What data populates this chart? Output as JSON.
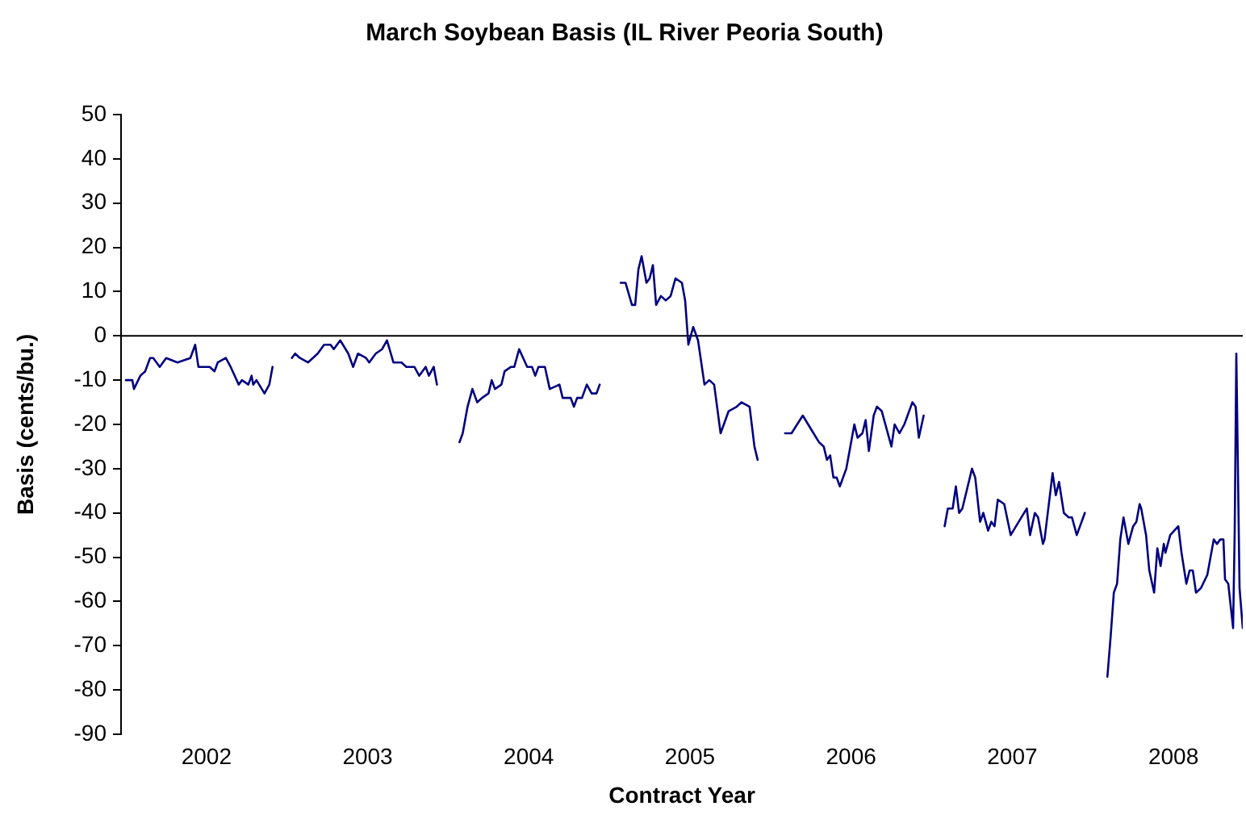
{
  "chart_data": {
    "type": "line",
    "title": "March Soybean Basis (IL River Peoria South)",
    "xlabel": "Contract Year",
    "ylabel": "Basis (cents/bu.)",
    "xlim": [
      2001.47,
      2008.43
    ],
    "xticks": [
      2002,
      2003,
      2004,
      2005,
      2006,
      2007,
      2008
    ],
    "ylim": [
      -90,
      50
    ],
    "yticks": [
      -90,
      -80,
      -70,
      -60,
      -50,
      -40,
      -30,
      -20,
      -10,
      0,
      10,
      20,
      30,
      40,
      50
    ],
    "grid": false,
    "legend": false,
    "marker": "none",
    "line_style": "solid",
    "ref_lines": [
      {
        "axis": "y",
        "value": 0,
        "color": "#000000"
      }
    ],
    "series": [
      {
        "color": "#000080",
        "x": [
          2001.5,
          2001.54,
          2001.55,
          2001.59,
          2001.62,
          2001.65,
          2001.67,
          2001.71,
          2001.75,
          2001.82,
          2001.9,
          2001.93,
          2001.95,
          2002.02,
          2002.05,
          2002.07,
          2002.12,
          2002.15,
          2002.2,
          2002.22,
          2002.26,
          2002.28,
          2002.29,
          2002.31,
          2002.36,
          2002.39,
          2002.41,
          2002.47,
          2002.53,
          2002.55,
          2002.58,
          2002.63,
          2002.69,
          2002.73,
          2002.77,
          2002.79,
          2002.83,
          2002.88,
          2002.91,
          2002.94,
          2002.99,
          2003.01,
          2003.05,
          2003.09,
          2003.12,
          2003.16,
          2003.21,
          2003.24,
          2003.29,
          2003.32,
          2003.36,
          2003.38,
          2003.41,
          2003.43,
          2003.5,
          2003.57,
          2003.59,
          2003.62,
          2003.65,
          2003.68,
          2003.71,
          2003.75,
          2003.77,
          2003.79,
          2003.83,
          2003.85,
          2003.89,
          2003.91,
          2003.94,
          2003.99,
          2004.02,
          2004.04,
          2004.06,
          2004.1,
          2004.13,
          2004.19,
          2004.21,
          2004.26,
          2004.28,
          2004.3,
          2004.33,
          2004.36,
          2004.39,
          2004.42,
          2004.44,
          2004.5,
          2004.57,
          2004.6,
          2004.64,
          2004.66,
          2004.68,
          2004.7,
          2004.73,
          2004.75,
          2004.77,
          2004.79,
          2004.82,
          2004.85,
          2004.88,
          2004.91,
          2004.95,
          2004.97,
          2004.99,
          2005.02,
          2005.05,
          2005.09,
          2005.12,
          2005.15,
          2005.19,
          2005.24,
          2005.29,
          2005.32,
          2005.37,
          2005.4,
          2005.42,
          2005.5,
          2005.59,
          2005.63,
          2005.7,
          2005.75,
          2005.8,
          2005.83,
          2005.85,
          2005.87,
          2005.89,
          2005.91,
          2005.93,
          2005.97,
          2005.99,
          2006.02,
          2006.04,
          2006.07,
          2006.09,
          2006.11,
          2006.14,
          2006.16,
          2006.19,
          2006.25,
          2006.27,
          2006.3,
          2006.33,
          2006.38,
          2006.4,
          2006.42,
          2006.45,
          2006.52,
          2006.58,
          2006.6,
          2006.63,
          2006.65,
          2006.67,
          2006.69,
          2006.75,
          2006.77,
          2006.8,
          2006.82,
          2006.85,
          2006.87,
          2006.89,
          2006.91,
          2006.95,
          2006.99,
          2007.04,
          2007.09,
          2007.11,
          2007.14,
          2007.16,
          2007.19,
          2007.2,
          2007.25,
          2007.27,
          2007.29,
          2007.32,
          2007.35,
          2007.37,
          2007.4,
          2007.45,
          2007.52,
          2007.59,
          2007.61,
          2007.63,
          2007.65,
          2007.67,
          2007.69,
          2007.72,
          2007.75,
          2007.77,
          2007.79,
          2007.8,
          2007.83,
          2007.85,
          2007.88,
          2007.9,
          2007.92,
          2007.94,
          2007.95,
          2007.98,
          2008.03,
          2008.05,
          2008.08,
          2008.1,
          2008.12,
          2008.14,
          2008.17,
          2008.21,
          2008.25,
          2008.27,
          2008.29,
          2008.31,
          2008.32,
          2008.34,
          2008.37,
          2008.38,
          2008.39,
          2008.41,
          2008.43
        ],
        "values": [
          -10,
          -10,
          -12,
          -9,
          -8,
          -5,
          -5,
          -7,
          -5,
          -6,
          -5,
          -2,
          -7,
          -7,
          -8,
          -6,
          -5,
          -7,
          -11,
          -10,
          -11,
          -9,
          -11,
          -10,
          -13,
          -11,
          -7,
          null,
          -5,
          -4,
          -5,
          -6,
          -4,
          -2,
          -2,
          -3,
          -1,
          -4,
          -7,
          -4,
          -5,
          -6,
          -4,
          -3,
          -1,
          -6,
          -6,
          -7,
          -7,
          -9,
          -7,
          -9,
          -7,
          -11,
          null,
          -24,
          -22,
          -16,
          -12,
          -15,
          -14,
          -13,
          -10,
          -12,
          -11,
          -8,
          -7,
          -7,
          -3,
          -7,
          -7,
          -9,
          -7,
          -7,
          -12,
          -11,
          -14,
          -14,
          -16,
          -14,
          -14,
          -11,
          -13,
          -13,
          -11,
          null,
          12,
          12,
          7,
          7,
          15,
          18,
          12,
          13,
          16,
          7,
          9,
          8,
          9,
          13,
          12,
          8,
          -2,
          2,
          -1,
          -11,
          -10,
          -11,
          -22,
          -17,
          -16,
          -15,
          -16,
          -25,
          -28,
          null,
          -22,
          -22,
          -18,
          -21,
          -24,
          -25,
          -28,
          -27,
          -32,
          -32,
          -34,
          -30,
          -26,
          -20,
          -23,
          -22,
          -19,
          -26,
          -18,
          -16,
          -17,
          -25,
          -20,
          -22,
          -20,
          -15,
          -16,
          -23,
          -18,
          null,
          -43,
          -39,
          -39,
          -34,
          -40,
          -39,
          -30,
          -32,
          -42,
          -40,
          -44,
          -42,
          -43,
          -37,
          -38,
          -45,
          -42,
          -39,
          -45,
          -40,
          -41,
          -47,
          -46,
          -31,
          -36,
          -33,
          -40,
          -41,
          -41,
          -45,
          -40,
          null,
          -77,
          -68,
          -58,
          -56,
          -46,
          -41,
          -47,
          -43,
          -42,
          -38,
          -39,
          -45,
          -53,
          -58,
          -48,
          -52,
          -47,
          -49,
          -45,
          -43,
          -49,
          -56,
          -53,
          -53,
          -58,
          -57,
          -54,
          -46,
          -47,
          -46,
          -46,
          -55,
          -56,
          -66,
          -44,
          -4,
          -57,
          -66
        ]
      }
    ]
  }
}
